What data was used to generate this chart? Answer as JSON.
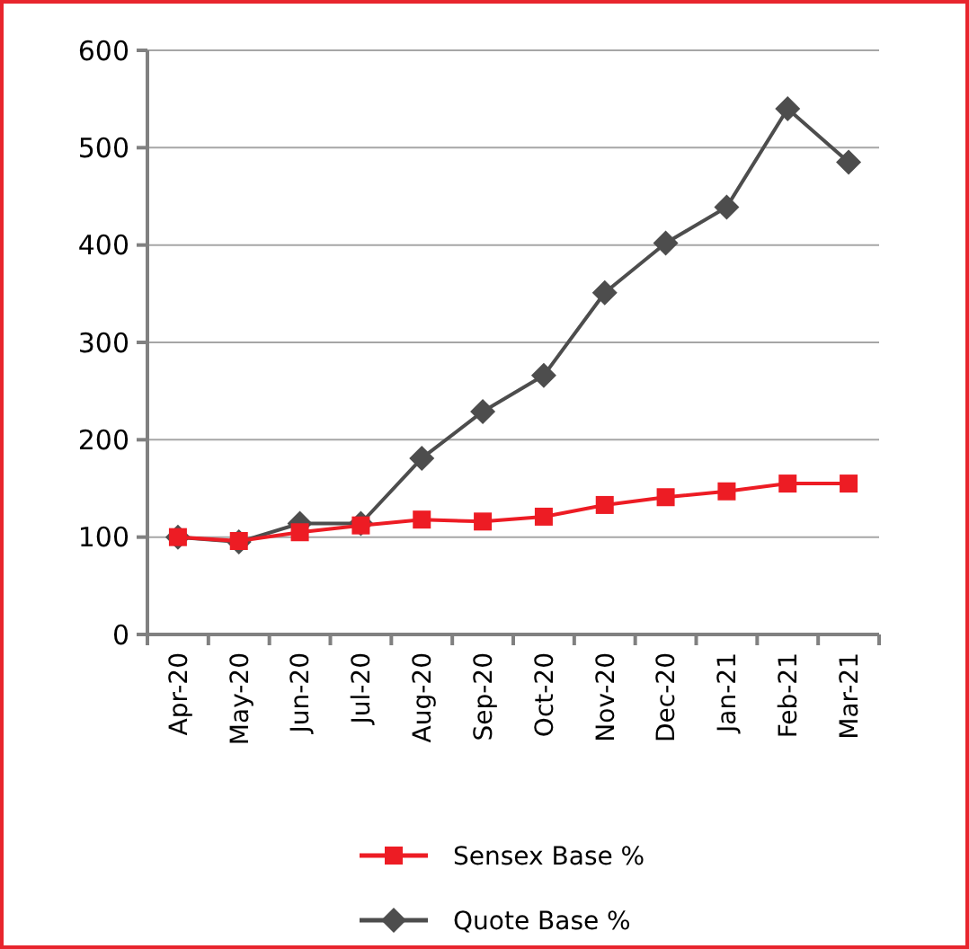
{
  "chart_data": {
    "type": "line",
    "categories": [
      "Apr-20",
      "May-20",
      "Jun-20",
      "Jul-20",
      "Aug-20",
      "Sep-20",
      "Oct-20",
      "Nov-20",
      "Dec-20",
      "Jan-21",
      "Feb-21",
      "Mar-21"
    ],
    "series": [
      {
        "name": "Sensex Base %",
        "color": "#ed1c24",
        "marker": "square",
        "values": [
          100,
          96,
          105,
          112,
          118,
          116,
          121,
          133,
          141,
          147,
          155,
          155
        ]
      },
      {
        "name": "Quote Base %",
        "color": "#4d4d4d",
        "marker": "diamond",
        "values": [
          100,
          95,
          114,
          114,
          181,
          229,
          266,
          351,
          402,
          439,
          540,
          485
        ]
      }
    ],
    "ylim": [
      0,
      600
    ],
    "yticks": [
      0,
      100,
      200,
      300,
      400,
      500,
      600
    ],
    "grid": "y",
    "legend": "bottom",
    "line_style": "solid"
  }
}
